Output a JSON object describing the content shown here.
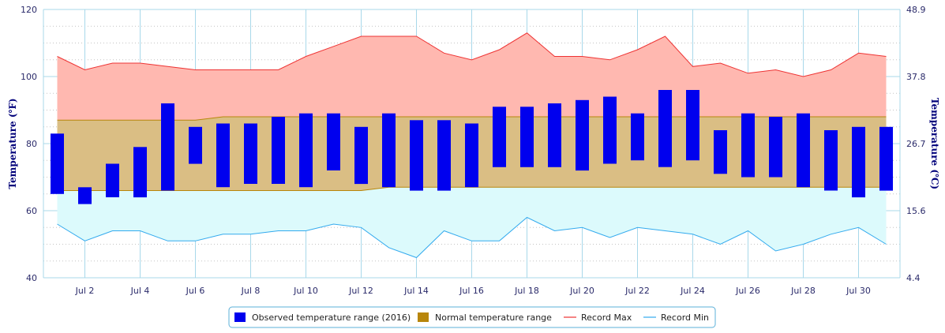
{
  "chart_data": {
    "type": "bar",
    "xlabel": "",
    "ylabel": "Temperature (℉)",
    "ylabel_right": "Temperature (℃)",
    "ylim": [
      40,
      120
    ],
    "yticks": [
      40,
      60,
      80,
      100,
      120
    ],
    "right_ticks": [
      {
        "f": 40,
        "label": "4.4"
      },
      {
        "f": 60,
        "label": "15.6"
      },
      {
        "f": 80,
        "label": "26.7"
      },
      {
        "f": 100,
        "label": "37.8"
      },
      {
        "f": 120,
        "label": "48.9"
      }
    ],
    "x": [
      1,
      2,
      3,
      4,
      5,
      6,
      7,
      8,
      9,
      10,
      11,
      12,
      13,
      14,
      15,
      16,
      17,
      18,
      19,
      20,
      21,
      22,
      23,
      24,
      25,
      26,
      27,
      28,
      29,
      30,
      31
    ],
    "xlim": [
      0.5,
      31.5
    ],
    "x_tick_days": [
      2,
      4,
      6,
      8,
      10,
      12,
      14,
      16,
      18,
      20,
      22,
      24,
      26,
      28,
      30
    ],
    "x_tick_labels": [
      "Jul 2",
      "Jul 4",
      "Jul 6",
      "Jul 8",
      "Jul 10",
      "Jul 12",
      "Jul 14",
      "Jul 16",
      "Jul 18",
      "Jul 20",
      "Jul 22",
      "Jul 24",
      "Jul 26",
      "Jul 28",
      "Jul 30"
    ],
    "grid": true,
    "legend_position": "bottom-center",
    "series": [
      {
        "name": "Observed temperature range (2016)",
        "kind": "range-bar",
        "color": "#0000ee",
        "low": [
          65,
          62,
          64,
          64,
          66,
          74,
          67,
          68,
          68,
          67,
          72,
          68,
          67,
          66,
          66,
          67,
          73,
          73,
          73,
          72,
          74,
          75,
          73,
          75,
          71,
          70,
          70,
          67,
          66,
          64,
          66
        ],
        "high": [
          83,
          67,
          74,
          79,
          92,
          85,
          86,
          86,
          88,
          89,
          89,
          85,
          89,
          87,
          87,
          86,
          91,
          91,
          92,
          93,
          94,
          89,
          96,
          96,
          84,
          89,
          88,
          89,
          84,
          85,
          85
        ]
      },
      {
        "name": "Normal temperature range",
        "kind": "range-area",
        "color": "#b8860b",
        "low": [
          66,
          66,
          66,
          66,
          66,
          66,
          66,
          66,
          66,
          66,
          66,
          66,
          67,
          67,
          67,
          67,
          67,
          67,
          67,
          67,
          67,
          67,
          67,
          67,
          67,
          67,
          67,
          67,
          67,
          67,
          67
        ],
        "high": [
          87,
          87,
          87,
          87,
          87,
          87,
          88,
          88,
          88,
          88,
          88,
          88,
          88,
          88,
          88,
          88,
          88,
          88,
          88,
          88,
          88,
          88,
          88,
          88,
          88,
          88,
          88,
          88,
          88,
          88,
          88
        ]
      },
      {
        "name": "Record Max",
        "kind": "line",
        "color": "#ee3333",
        "values": [
          106,
          102,
          104,
          104,
          103,
          102,
          102,
          102,
          102,
          106,
          109,
          112,
          112,
          112,
          107,
          105,
          108,
          113,
          106,
          106,
          105,
          108,
          112,
          103,
          104,
          101,
          102,
          100,
          102,
          107,
          106
        ]
      },
      {
        "name": "Record Min",
        "kind": "line",
        "color": "#33aaee",
        "values": [
          56,
          51,
          54,
          54,
          51,
          51,
          53,
          53,
          54,
          54,
          56,
          55,
          49,
          46,
          54,
          51,
          51,
          58,
          54,
          55,
          52,
          55,
          54,
          53,
          50,
          54,
          48,
          50,
          53,
          55,
          50
        ]
      }
    ]
  }
}
